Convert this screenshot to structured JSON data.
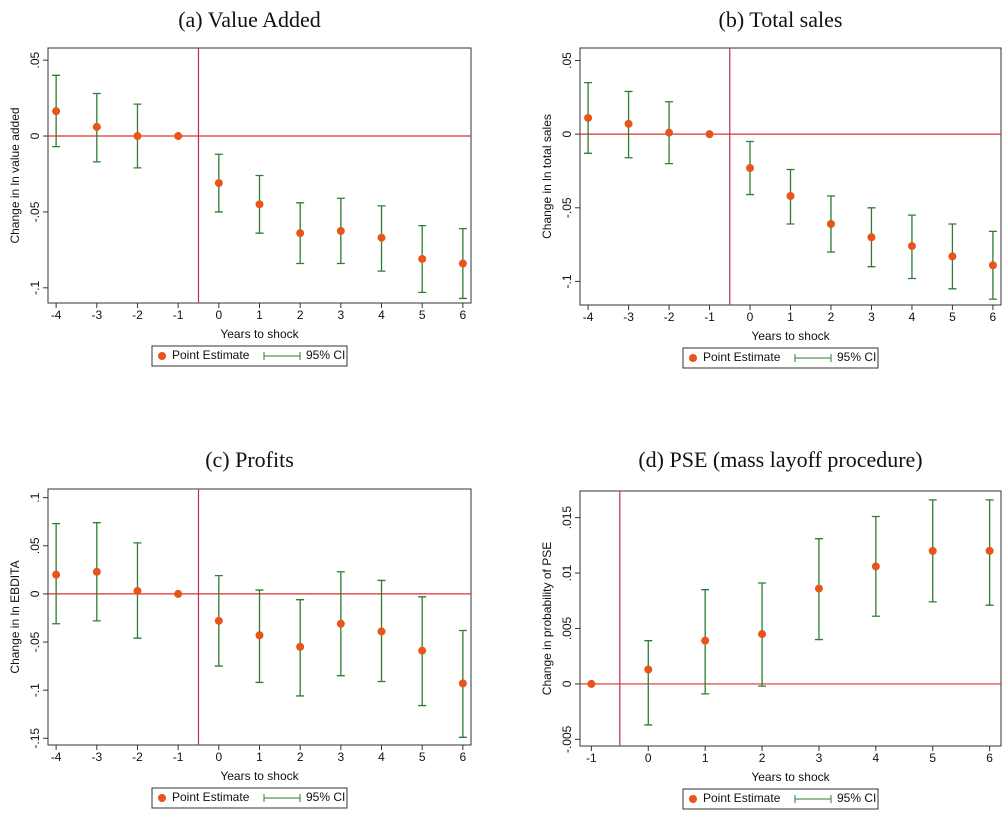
{
  "chart_data": [
    {
      "type": "errorbar",
      "title": "(a) Value Added",
      "xlabel": "Years to shock",
      "ylabel": "Change in ln value added",
      "x": [
        -4,
        -3,
        -2,
        -1,
        0,
        1,
        2,
        3,
        4,
        5,
        6
      ],
      "series": [
        {
          "name": "Point Estimate",
          "color": "#e8541a",
          "values": [
            0.0164,
            0.006,
            0,
            0,
            -0.031,
            -0.045,
            -0.064,
            -0.0625,
            -0.067,
            -0.081,
            -0.084
          ]
        },
        {
          "name": "95% CI",
          "color": "#2e7d32",
          "low": [
            -0.007,
            -0.017,
            -0.021,
            null,
            -0.05,
            -0.064,
            -0.084,
            -0.084,
            -0.089,
            -0.103,
            -0.107
          ],
          "high": [
            0.04,
            0.028,
            0.021,
            null,
            -0.012,
            -0.026,
            -0.044,
            -0.041,
            -0.046,
            -0.059,
            -0.061
          ]
        }
      ],
      "xlim": [
        -4.2,
        6.2
      ],
      "ylim": [
        -0.11,
        0.058
      ],
      "xticks": [
        -4,
        -3,
        -2,
        -1,
        0,
        1,
        2,
        3,
        4,
        5,
        6
      ],
      "yticks": [
        {
          "value": 0.05,
          "label": ".05"
        },
        0,
        {
          "value": -0.05,
          "label": "-.05"
        },
        {
          "value": -0.1,
          "label": "-.1"
        }
      ],
      "hline": 0,
      "hline_color": "#e03030",
      "vline": -0.5,
      "vline_color": "#b0306a",
      "grid": false,
      "legend": "bottom"
    },
    {
      "type": "errorbar",
      "title": "(b) Total sales",
      "xlabel": "Years to shock",
      "ylabel": "Change in ln total sales",
      "x": [
        -4,
        -3,
        -2,
        -1,
        0,
        1,
        2,
        3,
        4,
        5,
        6
      ],
      "series": [
        {
          "name": "Point Estimate",
          "color": "#e8541a",
          "values": [
            0.011,
            0.007,
            0.001,
            0,
            -0.023,
            -0.042,
            -0.061,
            -0.07,
            -0.076,
            -0.083,
            -0.089
          ]
        },
        {
          "name": "95% CI",
          "color": "#2e7d32",
          "low": [
            -0.013,
            -0.016,
            -0.02,
            null,
            -0.041,
            -0.061,
            -0.08,
            -0.09,
            -0.098,
            -0.105,
            -0.112
          ],
          "high": [
            0.035,
            0.029,
            0.022,
            null,
            -0.005,
            -0.024,
            -0.042,
            -0.05,
            -0.055,
            -0.061,
            -0.066
          ]
        }
      ],
      "xlim": [
        -4.2,
        6.2
      ],
      "ylim": [
        -0.116,
        0.0585
      ],
      "xticks": [
        -4,
        -3,
        -2,
        -1,
        0,
        1,
        2,
        3,
        4,
        5,
        6
      ],
      "yticks": [
        {
          "value": 0.05,
          "label": ".05"
        },
        0,
        {
          "value": -0.05,
          "label": "-.05"
        },
        {
          "value": -0.1,
          "label": "-.1"
        }
      ],
      "hline": 0,
      "hline_color": "#e03030",
      "vline": -0.5,
      "vline_color": "#b0306a",
      "grid": false,
      "legend": "bottom"
    },
    {
      "type": "errorbar",
      "title": "(c) Profits",
      "xlabel": "Years to shock",
      "ylabel": "Change in ln EBDITA",
      "x": [
        -4,
        -3,
        -2,
        -1,
        0,
        1,
        2,
        3,
        4,
        5,
        6
      ],
      "series": [
        {
          "name": "Point Estimate",
          "color": "#e8541a",
          "values": [
            0.02,
            0.023,
            0.003,
            0,
            -0.028,
            -0.043,
            -0.055,
            -0.031,
            -0.039,
            -0.059,
            -0.093
          ]
        },
        {
          "name": "95% CI",
          "color": "#2e7d32",
          "low": [
            -0.031,
            -0.028,
            -0.046,
            null,
            -0.075,
            -0.092,
            -0.106,
            -0.085,
            -0.091,
            -0.116,
            -0.149
          ],
          "high": [
            0.073,
            0.074,
            0.053,
            null,
            0.019,
            0.004,
            -0.006,
            0.023,
            0.014,
            -0.003,
            -0.038
          ]
        }
      ],
      "xlim": [
        -4.2,
        6.2
      ],
      "ylim": [
        -0.157,
        0.109
      ],
      "xticks": [
        -4,
        -3,
        -2,
        -1,
        0,
        1,
        2,
        3,
        4,
        5,
        6
      ],
      "yticks": [
        {
          "value": 0.1,
          "label": ".1"
        },
        {
          "value": 0.05,
          "label": ".05"
        },
        0,
        {
          "value": -0.05,
          "label": "-.05"
        },
        {
          "value": -0.1,
          "label": "-.1"
        },
        {
          "value": -0.15,
          "label": "-.15"
        }
      ],
      "hline": 0,
      "hline_color": "#e03030",
      "vline": -0.5,
      "vline_color": "#b0306a",
      "grid": false,
      "legend": "bottom"
    },
    {
      "type": "errorbar",
      "title": "(d) PSE (mass layoff procedure)",
      "xlabel": "Years to shock",
      "ylabel": "Change in probability of PSE",
      "x": [
        -1,
        0,
        1,
        2,
        3,
        4,
        5,
        6
      ],
      "series": [
        {
          "name": "Point Estimate",
          "color": "#e8541a",
          "values": [
            0,
            0.0013,
            0.0039,
            0.0045,
            0.0086,
            0.0106,
            0.012,
            0.012
          ]
        },
        {
          "name": "95% CI",
          "color": "#2e7d32",
          "low": [
            null,
            -0.0037,
            -0.0009,
            -0.0002,
            0.004,
            0.0061,
            0.0074,
            0.0071
          ],
          "high": [
            null,
            0.0039,
            0.0085,
            0.0091,
            0.0131,
            0.0151,
            0.0166,
            0.0166
          ]
        }
      ],
      "xlim": [
        -1.2,
        6.2
      ],
      "ylim": [
        -0.0056,
        0.0174
      ],
      "xticks": [
        -1,
        0,
        1,
        2,
        3,
        4,
        5,
        6
      ],
      "yticks": [
        {
          "value": 0.015,
          "label": ".015"
        },
        {
          "value": 0.01,
          "label": ".01"
        },
        {
          "value": 0.005,
          "label": ".005"
        },
        0,
        {
          "value": -0.005,
          "label": "-.005"
        }
      ],
      "hline": 0,
      "hline_color": "#e03030",
      "vline": -0.5,
      "vline_color": "#b0306a",
      "grid": false,
      "legend": "bottom"
    }
  ]
}
